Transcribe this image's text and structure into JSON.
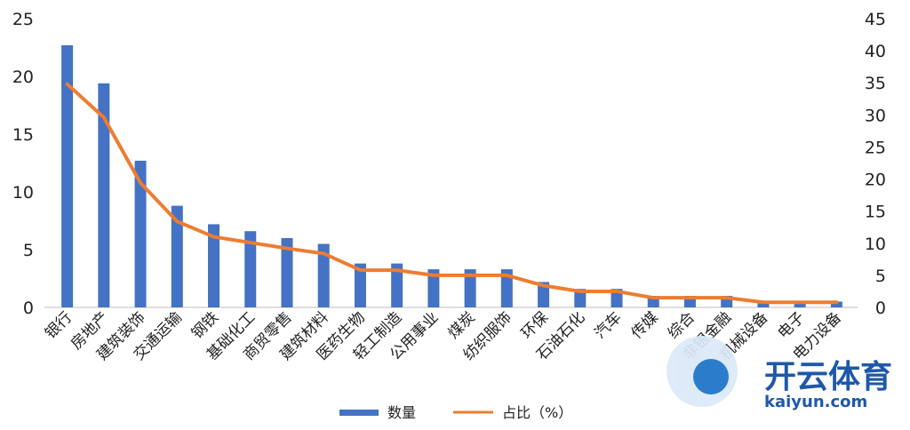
{
  "chart_data": {
    "type": "bar",
    "categories": [
      "银行",
      "房地产",
      "建筑装饰",
      "交通运输",
      "钢铁",
      "基础化工",
      "商贸零售",
      "建筑材料",
      "医药生物",
      "轻工制造",
      "公用事业",
      "煤炭",
      "纺织服饰",
      "环保",
      "石油石化",
      "汽车",
      "传媒",
      "综合",
      "非银金融",
      "机械设备",
      "电子",
      "电力设备"
    ],
    "series": [
      {
        "name": "数量",
        "kind": "bar",
        "axis": "left",
        "color": "#4472C4",
        "values": [
          22.7,
          19.4,
          12.7,
          8.8,
          7.2,
          6.6,
          6.0,
          5.5,
          3.8,
          3.8,
          3.3,
          3.3,
          3.3,
          2.2,
          1.6,
          1.6,
          1.0,
          1.0,
          1.0,
          0.5,
          0.5,
          0.5
        ]
      },
      {
        "name": "占比（%）",
        "kind": "line",
        "axis": "right",
        "color": "#ED7D31",
        "values": [
          34.8,
          29.6,
          19.4,
          13.4,
          11.0,
          10.1,
          9.2,
          8.4,
          5.8,
          5.8,
          5.0,
          5.0,
          5.0,
          3.4,
          2.5,
          2.5,
          1.5,
          1.5,
          1.5,
          0.8,
          0.8,
          0.8
        ]
      }
    ],
    "y_left": {
      "min": 0,
      "max": 25,
      "ticks": [
        "0",
        "5",
        "10",
        "15",
        "20",
        "25"
      ]
    },
    "y_right": {
      "min": 0,
      "max": 45,
      "ticks": [
        "0",
        "5",
        "10",
        "15",
        "20",
        "25",
        "30",
        "35",
        "40",
        "45"
      ]
    },
    "grid": false,
    "legend": {
      "position": "bottom",
      "items": [
        "数量",
        "占比（%）"
      ]
    }
  },
  "watermark": {
    "brand": "开云体育",
    "domain": "kaiyun.com"
  }
}
